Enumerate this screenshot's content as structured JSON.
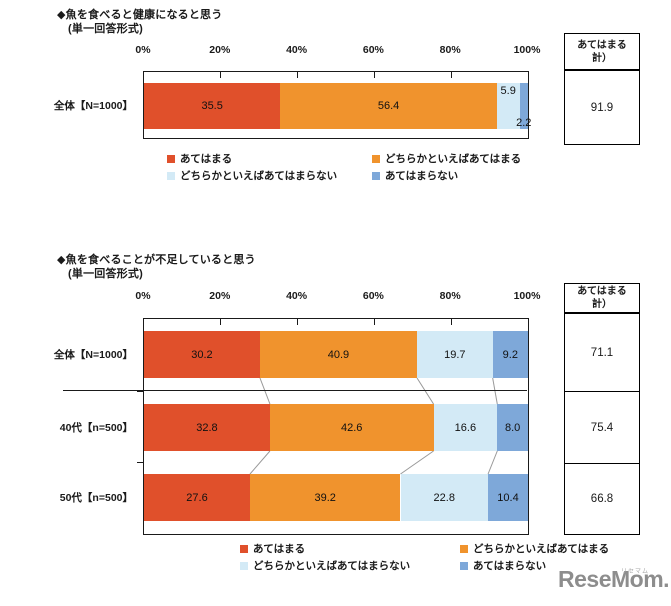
{
  "page": {
    "background": "#ffffff"
  },
  "colors": {
    "segment_red": "#e0502b",
    "segment_orange": "#f0932d",
    "segment_lightblue": "#d3eaf6",
    "segment_blue": "#7ea8d9",
    "connector_gray": "#999999",
    "logo_gray": "#8d8d8d",
    "text": "#1a1a1a"
  },
  "chart_data": [
    {
      "type": "bar",
      "stacked": true,
      "orientation": "horizontal",
      "title": "◆魚を食べると健康になると思う",
      "subtitle": "(単一回答形式)",
      "x_ticks": [
        "0%",
        "20%",
        "40%",
        "60%",
        "80%",
        "100%"
      ],
      "xlim": [
        0,
        100
      ],
      "grid": false,
      "legend_position": "bottom",
      "categories": [
        "全体【N=1000】"
      ],
      "series": [
        {
          "name": "あてはまる",
          "color": "#e0502b",
          "values": [
            35.5
          ]
        },
        {
          "name": "どちらかといえばあてはまる",
          "color": "#f0932d",
          "values": [
            56.4
          ]
        },
        {
          "name": "どちらかといえばあてはまらない",
          "color": "#d3eaf6",
          "values": [
            5.9
          ]
        },
        {
          "name": "あてはまらない",
          "color": "#7ea8d9",
          "values": [
            2.2
          ]
        }
      ],
      "summary": {
        "header": [
          "あてはまる",
          "計）"
        ],
        "values": [
          91.9
        ]
      }
    },
    {
      "type": "bar",
      "stacked": true,
      "orientation": "horizontal",
      "title": "◆魚を食べることが不足していると思う",
      "subtitle": "(単一回答形式)",
      "x_ticks": [
        "0%",
        "20%",
        "40%",
        "60%",
        "80%",
        "100%"
      ],
      "xlim": [
        0,
        100
      ],
      "grid": false,
      "legend_position": "bottom",
      "categories": [
        "全体【N=1000】",
        "40代【n=500】",
        "50代【n=500】"
      ],
      "series": [
        {
          "name": "あてはまる",
          "color": "#e0502b",
          "values": [
            30.2,
            32.8,
            27.6
          ]
        },
        {
          "name": "どちらかといえばあてはまる",
          "color": "#f0932d",
          "values": [
            40.9,
            42.6,
            39.2
          ]
        },
        {
          "name": "どちらかといえばあてはまらない",
          "color": "#d3eaf6",
          "values": [
            19.7,
            16.6,
            22.8
          ]
        },
        {
          "name": "あてはまらない",
          "color": "#7ea8d9",
          "values": [
            9.2,
            8.0,
            10.4
          ]
        }
      ],
      "summary": {
        "header": [
          "あてはまる",
          "計）"
        ],
        "values": [
          71.1,
          75.4,
          66.8
        ]
      }
    }
  ],
  "logo": {
    "text": "ReseMom.",
    "ruby": "リセマム"
  }
}
